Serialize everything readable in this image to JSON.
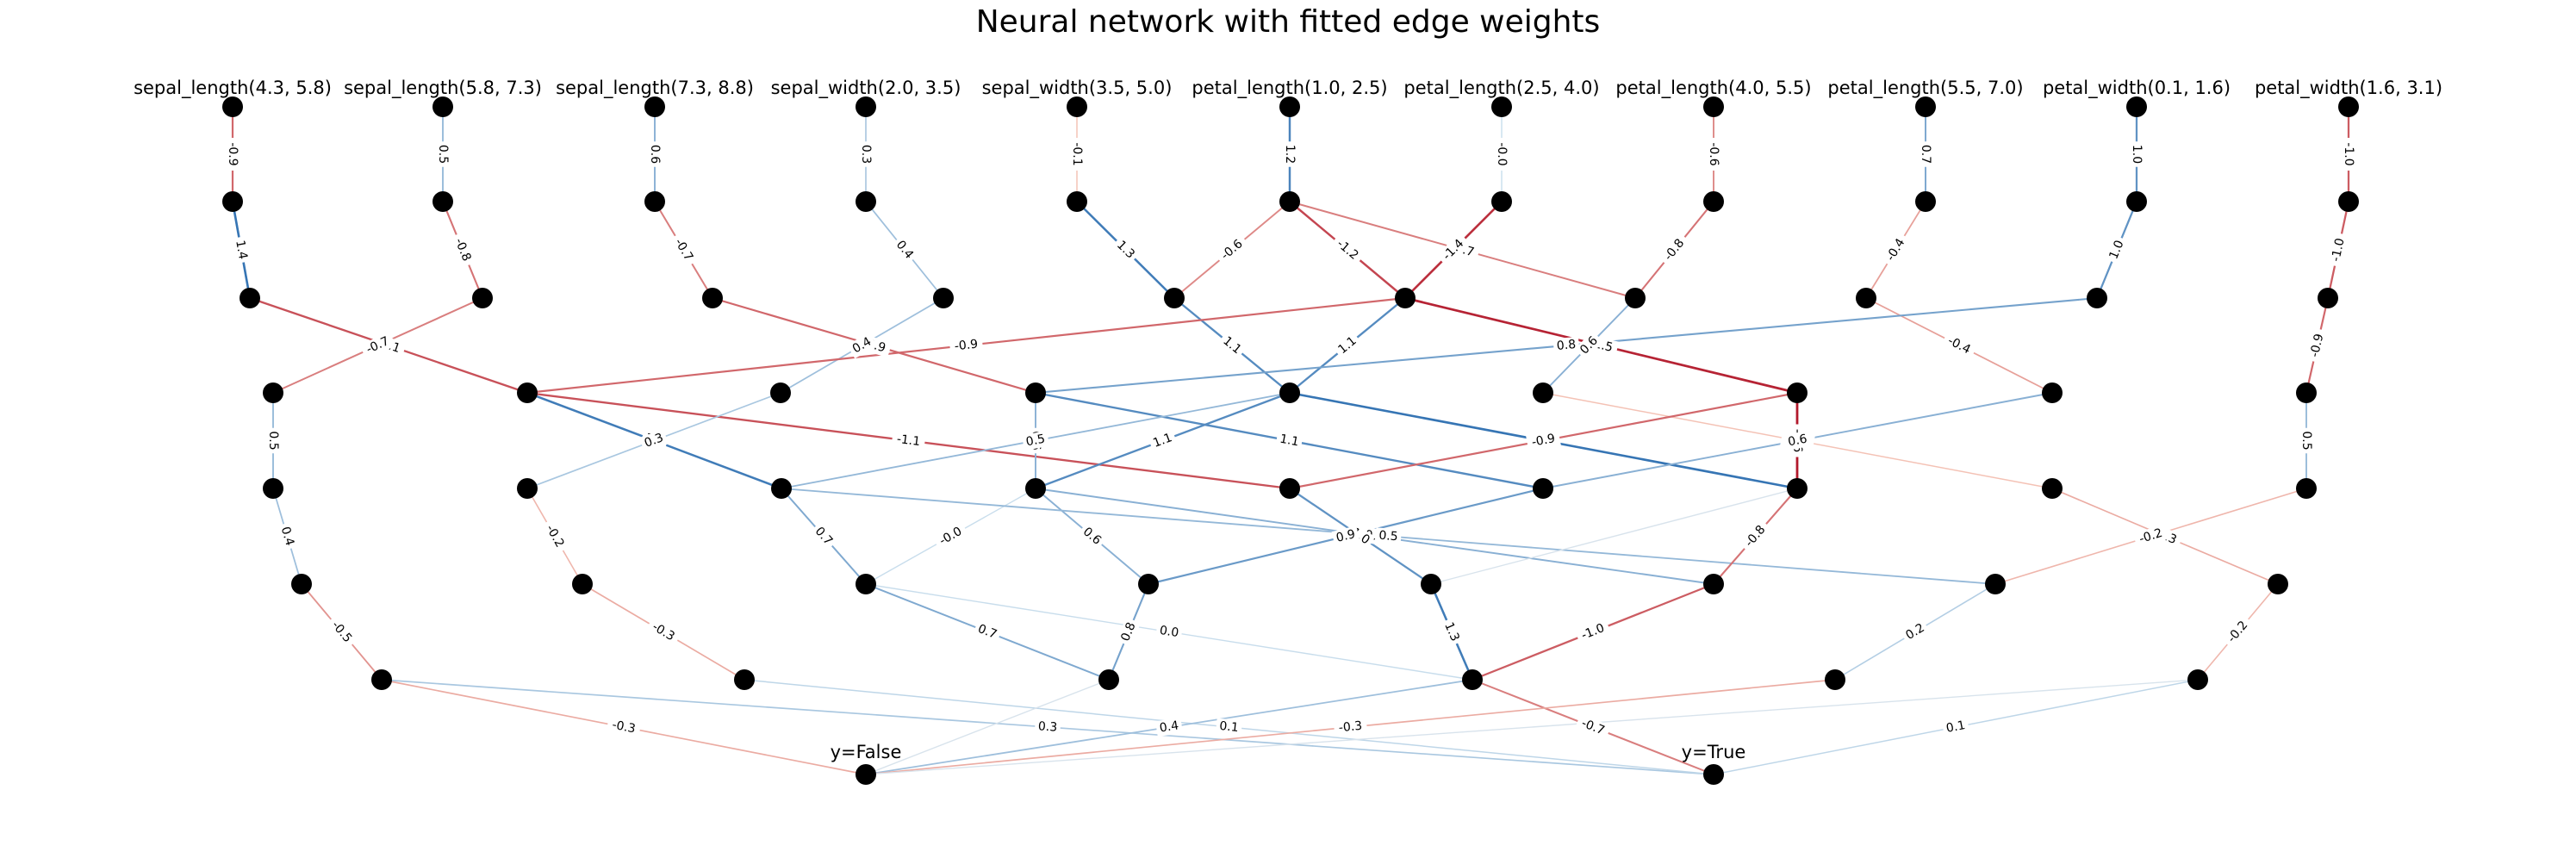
{
  "title": "Neural network with fitted edge weights",
  "input_labels": [
    "sepal_length(4.3, 5.8)",
    "sepal_length(5.8, 7.3)",
    "sepal_length(7.3, 8.8)",
    "sepal_width(2.0, 3.5)",
    "sepal_width(3.5, 5.0)",
    "petal_length(1.0, 2.5)",
    "petal_length(2.5, 4.0)",
    "petal_length(4.0, 5.5)",
    "petal_length(5.5, 7.0)",
    "petal_width(0.1, 1.6)",
    "petal_width(1.6, 3.1)"
  ],
  "output_labels": [
    "y=False",
    "y=True"
  ],
  "colors": {
    "positive": "#2166ac",
    "negative": "#b2182b",
    "node": "#000000"
  },
  "edges": [
    {
      "from": "in0",
      "to": "a0",
      "w": "-0.9"
    },
    {
      "from": "in1",
      "to": "a1",
      "w": "0.5"
    },
    {
      "from": "in2",
      "to": "a2",
      "w": "0.6"
    },
    {
      "from": "in3",
      "to": "a3",
      "w": "0.3"
    },
    {
      "from": "in4",
      "to": "a4",
      "w": "-0.1"
    },
    {
      "from": "in5",
      "to": "a5",
      "w": "1.2"
    },
    {
      "from": "in6",
      "to": "a6",
      "w": "-0.0"
    },
    {
      "from": "in7",
      "to": "a7",
      "w": "-0.6"
    },
    {
      "from": "in8",
      "to": "a8",
      "w": "0.7"
    },
    {
      "from": "in9",
      "to": "a9",
      "w": "1.0"
    },
    {
      "from": "in10",
      "to": "a10",
      "w": "-1.0"
    },
    {
      "from": "a0",
      "to": "b0",
      "w": "1.4"
    },
    {
      "from": "a1",
      "to": "b1",
      "w": "-0.8"
    },
    {
      "from": "a2",
      "to": "b2",
      "w": "-0.7"
    },
    {
      "from": "a3",
      "to": "b3",
      "w": "0.4"
    },
    {
      "from": "a4",
      "to": "b4",
      "w": "1.3"
    },
    {
      "from": "a5",
      "to": "b4",
      "w": "-0.6"
    },
    {
      "from": "a5",
      "to": "b6",
      "w": "-0.7"
    },
    {
      "from": "a5",
      "to": "b5",
      "w": "-1.2"
    },
    {
      "from": "a6",
      "to": "b5",
      "w": "-1.4"
    },
    {
      "from": "a7",
      "to": "b6",
      "w": "-0.8"
    },
    {
      "from": "a8",
      "to": "b7",
      "w": "-0.4"
    },
    {
      "from": "a9",
      "to": "b8",
      "w": "1.0"
    },
    {
      "from": "a10",
      "to": "b9",
      "w": "-1.0"
    },
    {
      "from": "b0",
      "to": "c1",
      "w": "-1.1"
    },
    {
      "from": "b1",
      "to": "c0",
      "w": "-0.7"
    },
    {
      "from": "b2",
      "to": "c3",
      "w": "-0.9"
    },
    {
      "from": "b3",
      "to": "c2",
      "w": "0.4"
    },
    {
      "from": "b4",
      "to": "c4",
      "w": "1.1"
    },
    {
      "from": "b5",
      "to": "c1",
      "w": "-0.9"
    },
    {
      "from": "b5",
      "to": "c4",
      "w": "1.1"
    },
    {
      "from": "b5",
      "to": "c6",
      "w": "-1.5"
    },
    {
      "from": "b6",
      "to": "c5",
      "w": "0.6"
    },
    {
      "from": "b7",
      "to": "c7",
      "w": "-0.4"
    },
    {
      "from": "b8",
      "to": "c3",
      "w": "0.8"
    },
    {
      "from": "b9",
      "to": "c8",
      "w": "-0.9"
    },
    {
      "from": "c0",
      "to": "d0",
      "w": "0.5"
    },
    {
      "from": "c1",
      "to": "d3",
      "w": "1.3"
    },
    {
      "from": "c1",
      "to": "d4",
      "w": "-1.1"
    },
    {
      "from": "c2",
      "to": "d1",
      "w": "0.3"
    },
    {
      "from": "c3",
      "to": "d2",
      "w": "0.6"
    },
    {
      "from": "c3",
      "to": "d5",
      "w": "1.1"
    },
    {
      "from": "c4",
      "to": "d2",
      "w": "1.1"
    },
    {
      "from": "c4",
      "to": "d6",
      "w": "1.4"
    },
    {
      "from": "c4",
      "to": "d3",
      "w": "0.5"
    },
    {
      "from": "c5",
      "to": "d7",
      "w": "-0.1"
    },
    {
      "from": "c6",
      "to": "d4",
      "w": "-0.9"
    },
    {
      "from": "c6",
      "to": "d6",
      "w": "-1.6"
    },
    {
      "from": "c7",
      "to": "d5",
      "w": "0.6"
    },
    {
      "from": "c8",
      "to": "d8",
      "w": "0.5"
    },
    {
      "from": "d0",
      "to": "e0",
      "w": "0.4"
    },
    {
      "from": "d1",
      "to": "e1",
      "w": "-0.2"
    },
    {
      "from": "d2",
      "to": "e3",
      "w": "0.6"
    },
    {
      "from": "d2",
      "to": "e2",
      "w": "-0.0"
    },
    {
      "from": "d2",
      "to": "e5",
      "w": "0.6"
    },
    {
      "from": "d3",
      "to": "e2",
      "w": "0.7"
    },
    {
      "from": "d3",
      "to": "e6",
      "w": "0.5"
    },
    {
      "from": "d4",
      "to": "e4",
      "w": "1.0"
    },
    {
      "from": "d5",
      "to": "e3",
      "w": "0.9"
    },
    {
      "from": "d6",
      "to": "e4",
      "w": ""
    },
    {
      "from": "d6",
      "to": "e5",
      "w": "-0.8"
    },
    {
      "from": "d7",
      "to": "e7",
      "w": "-0.3"
    },
    {
      "from": "d8",
      "to": "e6",
      "w": "-0.2"
    },
    {
      "from": "e0",
      "to": "f0",
      "w": "-0.5"
    },
    {
      "from": "e1",
      "to": "f1",
      "w": "-0.3"
    },
    {
      "from": "e2",
      "to": "f2",
      "w": "0.7"
    },
    {
      "from": "e2",
      "to": "f3",
      "w": "0.0"
    },
    {
      "from": "e3",
      "to": "f2",
      "w": "0.8"
    },
    {
      "from": "e4",
      "to": "f3",
      "w": "1.3"
    },
    {
      "from": "e5",
      "to": "f3",
      "w": "-1.0"
    },
    {
      "from": "e6",
      "to": "f4",
      "w": "0.2"
    },
    {
      "from": "e7",
      "to": "f5",
      "w": "-0.2"
    },
    {
      "from": "f0",
      "to": "oF",
      "w": "-0.3"
    },
    {
      "from": "f0",
      "to": "oT",
      "w": "0.3"
    },
    {
      "from": "f1",
      "to": "oT",
      "w": "0.1"
    },
    {
      "from": "f2",
      "to": "oF",
      "w": ""
    },
    {
      "from": "f3",
      "to": "oF",
      "w": "0.4"
    },
    {
      "from": "f3",
      "to": "oT",
      "w": "-0.7"
    },
    {
      "from": "f4",
      "to": "oF",
      "w": "-0.3"
    },
    {
      "from": "f5",
      "to": "oF",
      "w": ""
    },
    {
      "from": "f5",
      "to": "oT",
      "w": "0.1"
    }
  ]
}
